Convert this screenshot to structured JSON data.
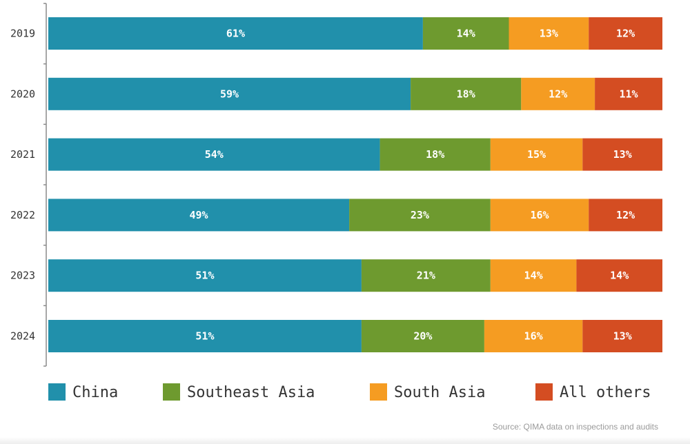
{
  "chart_data": {
    "type": "bar",
    "orientation": "horizontal",
    "stacked": true,
    "categories": [
      "2019",
      "2020",
      "2021",
      "2022",
      "2023",
      "2024"
    ],
    "series": [
      {
        "name": "China",
        "color": "#2190AB",
        "values": [
          61,
          59,
          54,
          49,
          51,
          51
        ]
      },
      {
        "name": "Southeast Asia",
        "color": "#6E9A2F",
        "values": [
          14,
          18,
          18,
          23,
          21,
          20
        ]
      },
      {
        "name": "South Asia",
        "color": "#F59C22",
        "values": [
          13,
          12,
          15,
          16,
          14,
          16
        ]
      },
      {
        "name": "All others",
        "color": "#D44D22",
        "values": [
          12,
          11,
          13,
          12,
          14,
          13
        ]
      }
    ],
    "value_suffix": "%",
    "xlim": [
      0,
      100
    ],
    "title": "",
    "xlabel": "",
    "ylabel": "",
    "grid": false,
    "legend_position": "bottom",
    "source": "Source: QIMA data on inspections and audits"
  }
}
